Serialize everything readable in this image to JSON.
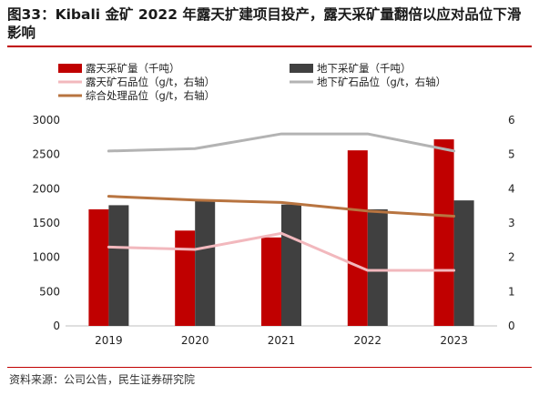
{
  "title": "图33：Kibali 金矿 2022 年露天扩建项目投产，露天采矿量翻倍以应对品位下滑影响",
  "source": "资料来源：公司公告，民生证券研究院",
  "colors": {
    "open_pit_bar": "#c00000",
    "underground_bar": "#404040",
    "open_pit_grade": "#f2b8bd",
    "underground_grade": "#b3b3b3",
    "processed_grade": "#b87440"
  },
  "chart_data": {
    "type": "bar",
    "categories": [
      "2019",
      "2020",
      "2021",
      "2022",
      "2023"
    ],
    "series": [
      {
        "name": "露天采矿量（千吨）",
        "type": "bar",
        "axis": "left",
        "values": [
          1700,
          1390,
          1290,
          2560,
          2720
        ]
      },
      {
        "name": "地下采矿量（千吨）",
        "type": "bar",
        "axis": "left",
        "values": [
          1760,
          1820,
          1770,
          1700,
          1830
        ]
      },
      {
        "name": "露天矿石品位（g/t，右轴）",
        "type": "line",
        "axis": "right",
        "values": [
          2.3,
          2.23,
          2.7,
          1.62,
          1.62
        ]
      },
      {
        "name": "地下矿石品位（g/t，右轴）",
        "type": "line",
        "axis": "right",
        "values": [
          5.1,
          5.17,
          5.6,
          5.6,
          5.1
        ]
      },
      {
        "name": "综合处理品位（g/t，右轴）",
        "type": "line",
        "axis": "right",
        "values": [
          3.78,
          3.67,
          3.6,
          3.35,
          3.2
        ]
      }
    ],
    "y_left": {
      "min": 0,
      "max": 3000,
      "ticks": [
        0,
        500,
        1000,
        1500,
        2000,
        2500,
        3000
      ]
    },
    "y_right": {
      "min": 0,
      "max": 6,
      "ticks": [
        0,
        1,
        2,
        3,
        4,
        5,
        6
      ]
    },
    "legend_position": "top",
    "grid": false
  }
}
